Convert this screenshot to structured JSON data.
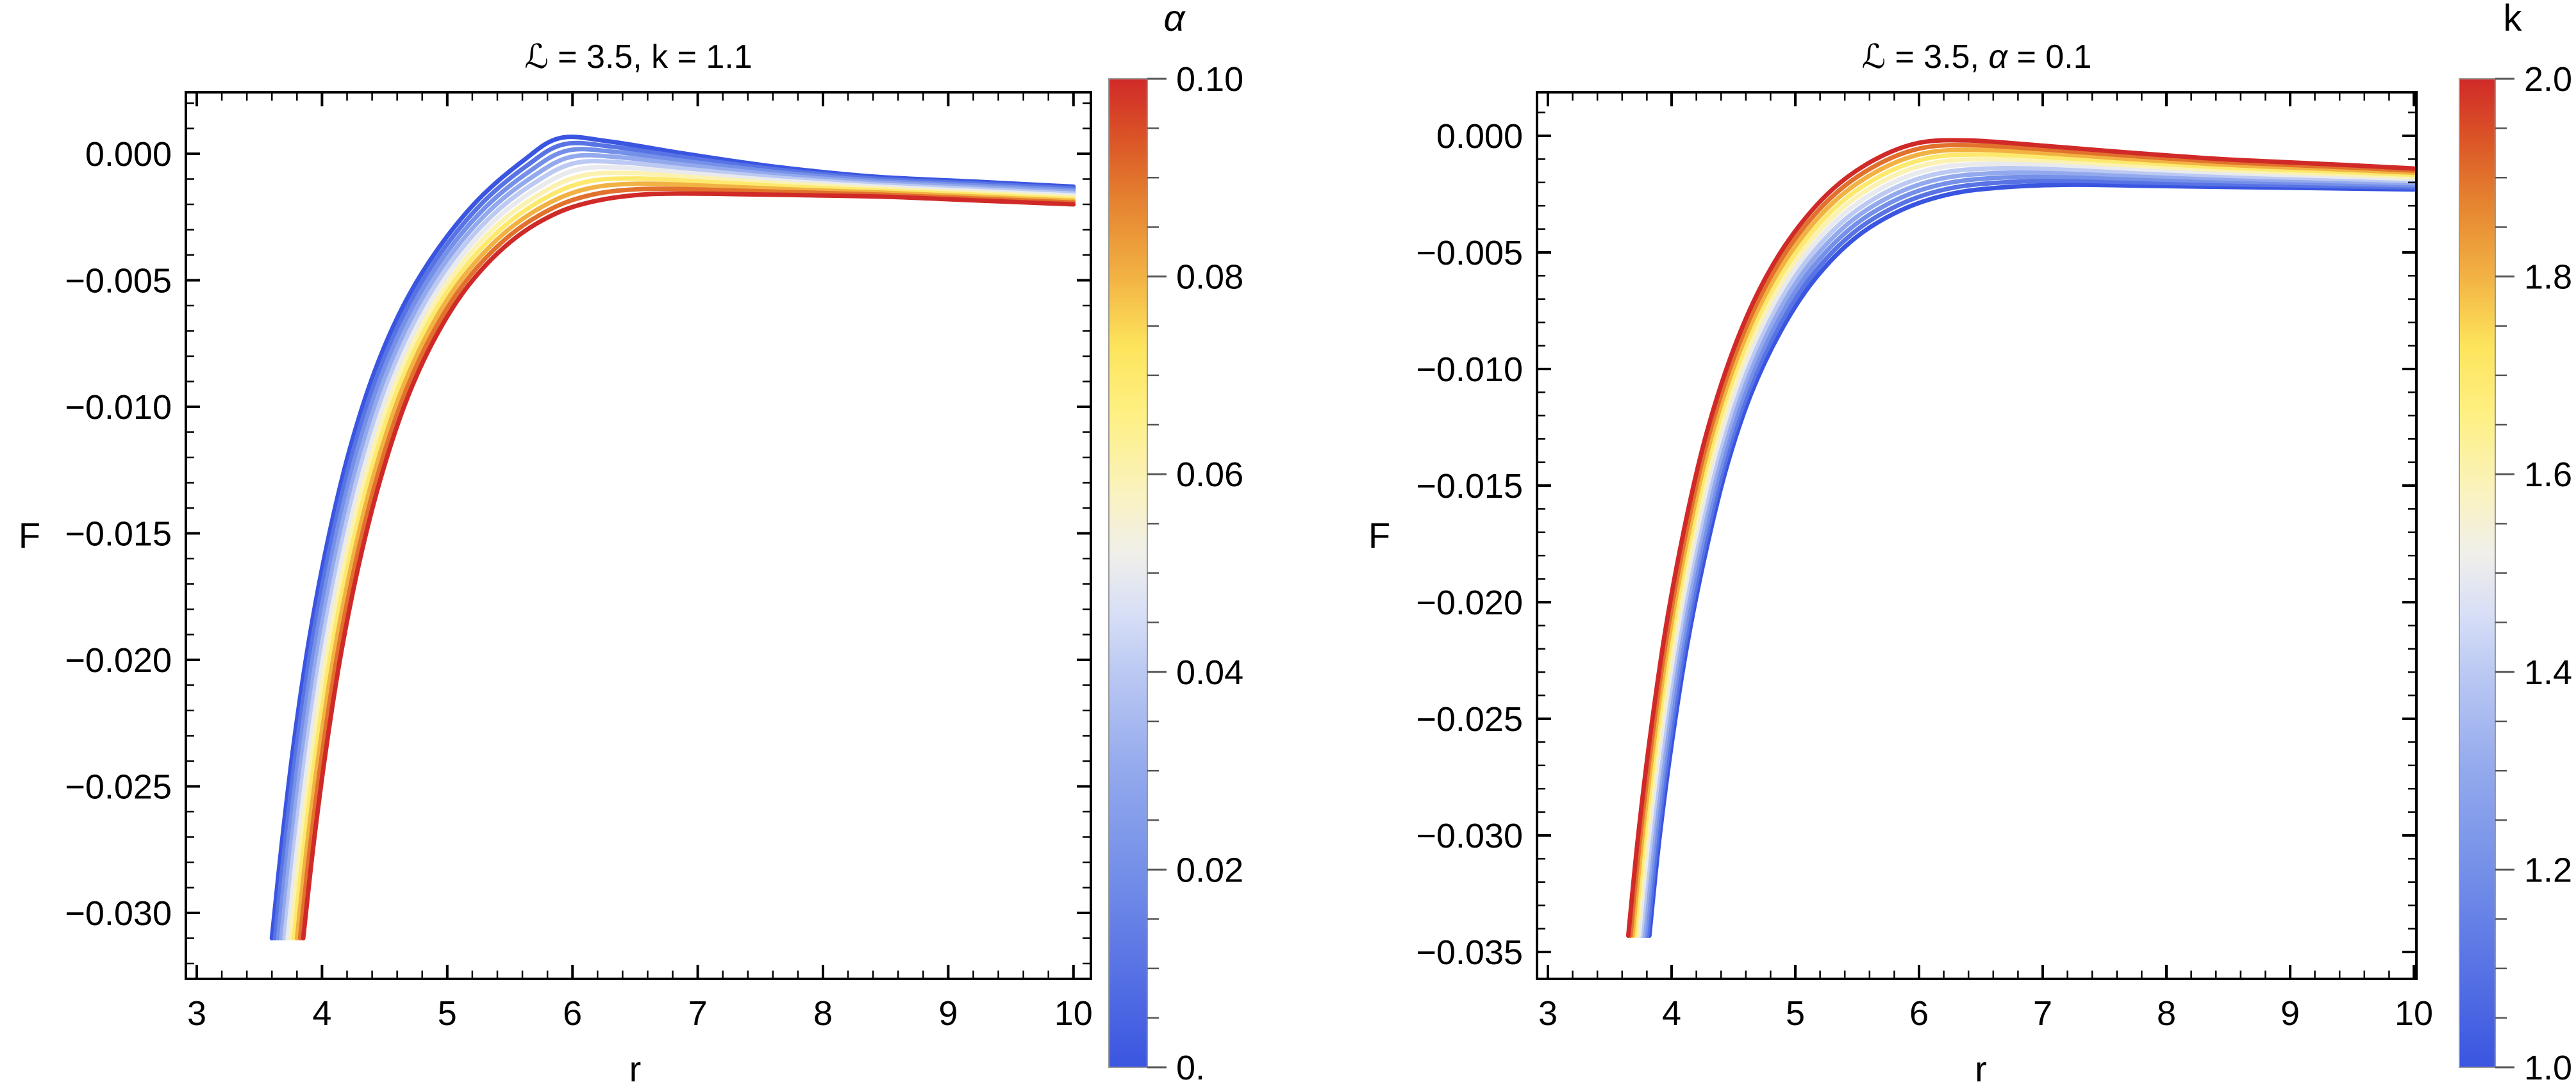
{
  "colors": {
    "background": "#FFFFFF",
    "frame": "#000000",
    "tick": "#000000",
    "colorbar_tick": "#555555",
    "colorbar_border": "#999999",
    "curve_min_color": "#3A55E0",
    "curve_max_color": "#D02A28"
  },
  "colormap_stops": [
    {
      "t": 0.0,
      "color": "#3A55E0"
    },
    {
      "t": 0.1,
      "color": "#5873E4"
    },
    {
      "t": 0.2,
      "color": "#7490E8"
    },
    {
      "t": 0.3,
      "color": "#93A9ED"
    },
    {
      "t": 0.4,
      "color": "#BBC9F3"
    },
    {
      "t": 0.46,
      "color": "#D8DFF6"
    },
    {
      "t": 0.52,
      "color": "#F0EFE9"
    },
    {
      "t": 0.58,
      "color": "#FAF2C0"
    },
    {
      "t": 0.66,
      "color": "#FEF083"
    },
    {
      "t": 0.73,
      "color": "#FDE45C"
    },
    {
      "t": 0.8,
      "color": "#F2B243"
    },
    {
      "t": 0.88,
      "color": "#E4802F"
    },
    {
      "t": 0.94,
      "color": "#DB5427"
    },
    {
      "t": 1.0,
      "color": "#D02A28"
    }
  ],
  "chart_data": [
    {
      "type": "line",
      "title": "ℒ = 3.5, k = 1.1",
      "title_segments": [
        {
          "text": "ℒ = 3.5, k = 1.1",
          "italic": false
        }
      ],
      "xlabel": "r",
      "ylabel": "F",
      "xlim": [
        2.91,
        10.14
      ],
      "ylim": [
        -0.0326,
        0.0024
      ],
      "grid": false,
      "x_tick_labels": [
        "3",
        "4",
        "5",
        "6",
        "7",
        "8",
        "9",
        "10"
      ],
      "y_tick_labels": [
        "0.000",
        "−0.005",
        "−0.010",
        "−0.015",
        "−0.020",
        "−0.025",
        "−0.030"
      ],
      "colorbar": {
        "label": "α",
        "label_italic": true,
        "position": "right",
        "range": [
          0,
          0.1
        ],
        "tick_labels": [
          "0.10",
          "0.08",
          "0.06",
          "0.04",
          "0.02",
          "0."
        ]
      },
      "series_parameter": "alpha",
      "series_param_values": [
        0,
        0.01,
        0.02,
        0.03,
        0.04,
        0.05,
        0.06,
        0.07,
        0.08,
        0.09,
        0.1
      ],
      "series_interpolation": "curves for intermediate alpha are linear blends of the two anchor curves",
      "anchor_curves": [
        {
          "param": 0,
          "color_t": 0,
          "points": [
            [
              3.6,
              -0.031
            ],
            [
              3.68,
              -0.0272
            ],
            [
              3.78,
              -0.0231
            ],
            [
              3.9,
              -0.0191
            ],
            [
              4.05,
              -0.0152
            ],
            [
              4.22,
              -0.0117
            ],
            [
              4.42,
              -0.0086
            ],
            [
              4.65,
              -0.006
            ],
            [
              4.92,
              -0.0038
            ],
            [
              5.25,
              -0.0018
            ],
            [
              5.6,
              -0.0003
            ],
            [
              5.9,
              0.00062
            ],
            [
              6.3,
              0.00048
            ],
            [
              6.9,
              0.0
            ],
            [
              7.6,
              -0.0005
            ],
            [
              8.4,
              -0.0009
            ],
            [
              9.2,
              -0.0011
            ],
            [
              10.0,
              -0.0013
            ]
          ]
        },
        {
          "param": 0.1,
          "color_t": 1,
          "points": [
            [
              3.85,
              -0.031
            ],
            [
              3.93,
              -0.0274
            ],
            [
              4.03,
              -0.0236
            ],
            [
              4.15,
              -0.0198
            ],
            [
              4.3,
              -0.0161
            ],
            [
              4.47,
              -0.0128
            ],
            [
              4.67,
              -0.0098
            ],
            [
              4.9,
              -0.0073
            ],
            [
              5.17,
              -0.0052
            ],
            [
              5.5,
              -0.0035
            ],
            [
              5.85,
              -0.0024
            ],
            [
              6.2,
              -0.00185
            ],
            [
              6.6,
              -0.0016
            ],
            [
              7.1,
              -0.00158
            ],
            [
              7.75,
              -0.00163
            ],
            [
              8.5,
              -0.0017
            ],
            [
              9.25,
              -0.00185
            ],
            [
              10.0,
              -0.002
            ]
          ]
        }
      ]
    },
    {
      "type": "line",
      "title": "ℒ = 3.5, α = 0.1",
      "title_segments": [
        {
          "text": "ℒ = 3.5, ",
          "italic": false
        },
        {
          "text": "α",
          "italic": true
        },
        {
          "text": " = 0.1",
          "italic": false
        }
      ],
      "xlabel": "r",
      "ylabel": "F",
      "xlim": [
        2.91,
        10.14
      ],
      "ylim": [
        -0.0362,
        0.0019
      ],
      "grid": false,
      "x_tick_labels": [
        "3",
        "4",
        "5",
        "6",
        "7",
        "8",
        "9",
        "10"
      ],
      "y_tick_labels": [
        "0.000",
        "−0.005",
        "−0.010",
        "−0.015",
        "−0.020",
        "−0.025",
        "−0.030",
        "−0.035"
      ],
      "colorbar": {
        "label": "k",
        "label_italic": false,
        "position": "right",
        "range": [
          1.0,
          2.0
        ],
        "tick_labels": [
          "2.0",
          "1.8",
          "1.6",
          "1.4",
          "1.2",
          "1.0"
        ]
      },
      "series_parameter": "k",
      "series_param_values": [
        1.0,
        1.1,
        1.2,
        1.3,
        1.4,
        1.5,
        1.6,
        1.7,
        1.8,
        1.9,
        2.0
      ],
      "series_interpolation": "curves for intermediate k are linear blends of the two anchor curves",
      "anchor_curves": [
        {
          "param": 1.0,
          "color_t": 0,
          "points": [
            [
              3.82,
              -0.0343
            ],
            [
              3.9,
              -0.0302
            ],
            [
              4.0,
              -0.0261
            ],
            [
              4.12,
              -0.022
            ],
            [
              4.27,
              -0.018
            ],
            [
              4.44,
              -0.0143
            ],
            [
              4.64,
              -0.0111
            ],
            [
              4.88,
              -0.0084
            ],
            [
              5.15,
              -0.0062
            ],
            [
              5.48,
              -0.0044
            ],
            [
              5.85,
              -0.0032
            ],
            [
              6.25,
              -0.0025
            ],
            [
              6.7,
              -0.0022
            ],
            [
              7.25,
              -0.0021
            ],
            [
              7.9,
              -0.00215
            ],
            [
              8.6,
              -0.0022
            ],
            [
              9.3,
              -0.00225
            ],
            [
              10.0,
              -0.0023
            ]
          ]
        },
        {
          "param": 2.0,
          "color_t": 1,
          "points": [
            [
              3.65,
              -0.0343
            ],
            [
              3.73,
              -0.03
            ],
            [
              3.83,
              -0.0256
            ],
            [
              3.95,
              -0.0212
            ],
            [
              4.1,
              -0.0169
            ],
            [
              4.27,
              -0.013
            ],
            [
              4.47,
              -0.0096
            ],
            [
              4.7,
              -0.0067
            ],
            [
              4.97,
              -0.0043
            ],
            [
              5.3,
              -0.0023
            ],
            [
              5.65,
              -0.001
            ],
            [
              6.0,
              -0.0003
            ],
            [
              6.4,
              -0.0002
            ],
            [
              6.95,
              -0.0004
            ],
            [
              7.65,
              -0.0007
            ],
            [
              8.45,
              -0.001
            ],
            [
              9.25,
              -0.0012
            ],
            [
              10.0,
              -0.0014
            ]
          ]
        }
      ]
    }
  ]
}
